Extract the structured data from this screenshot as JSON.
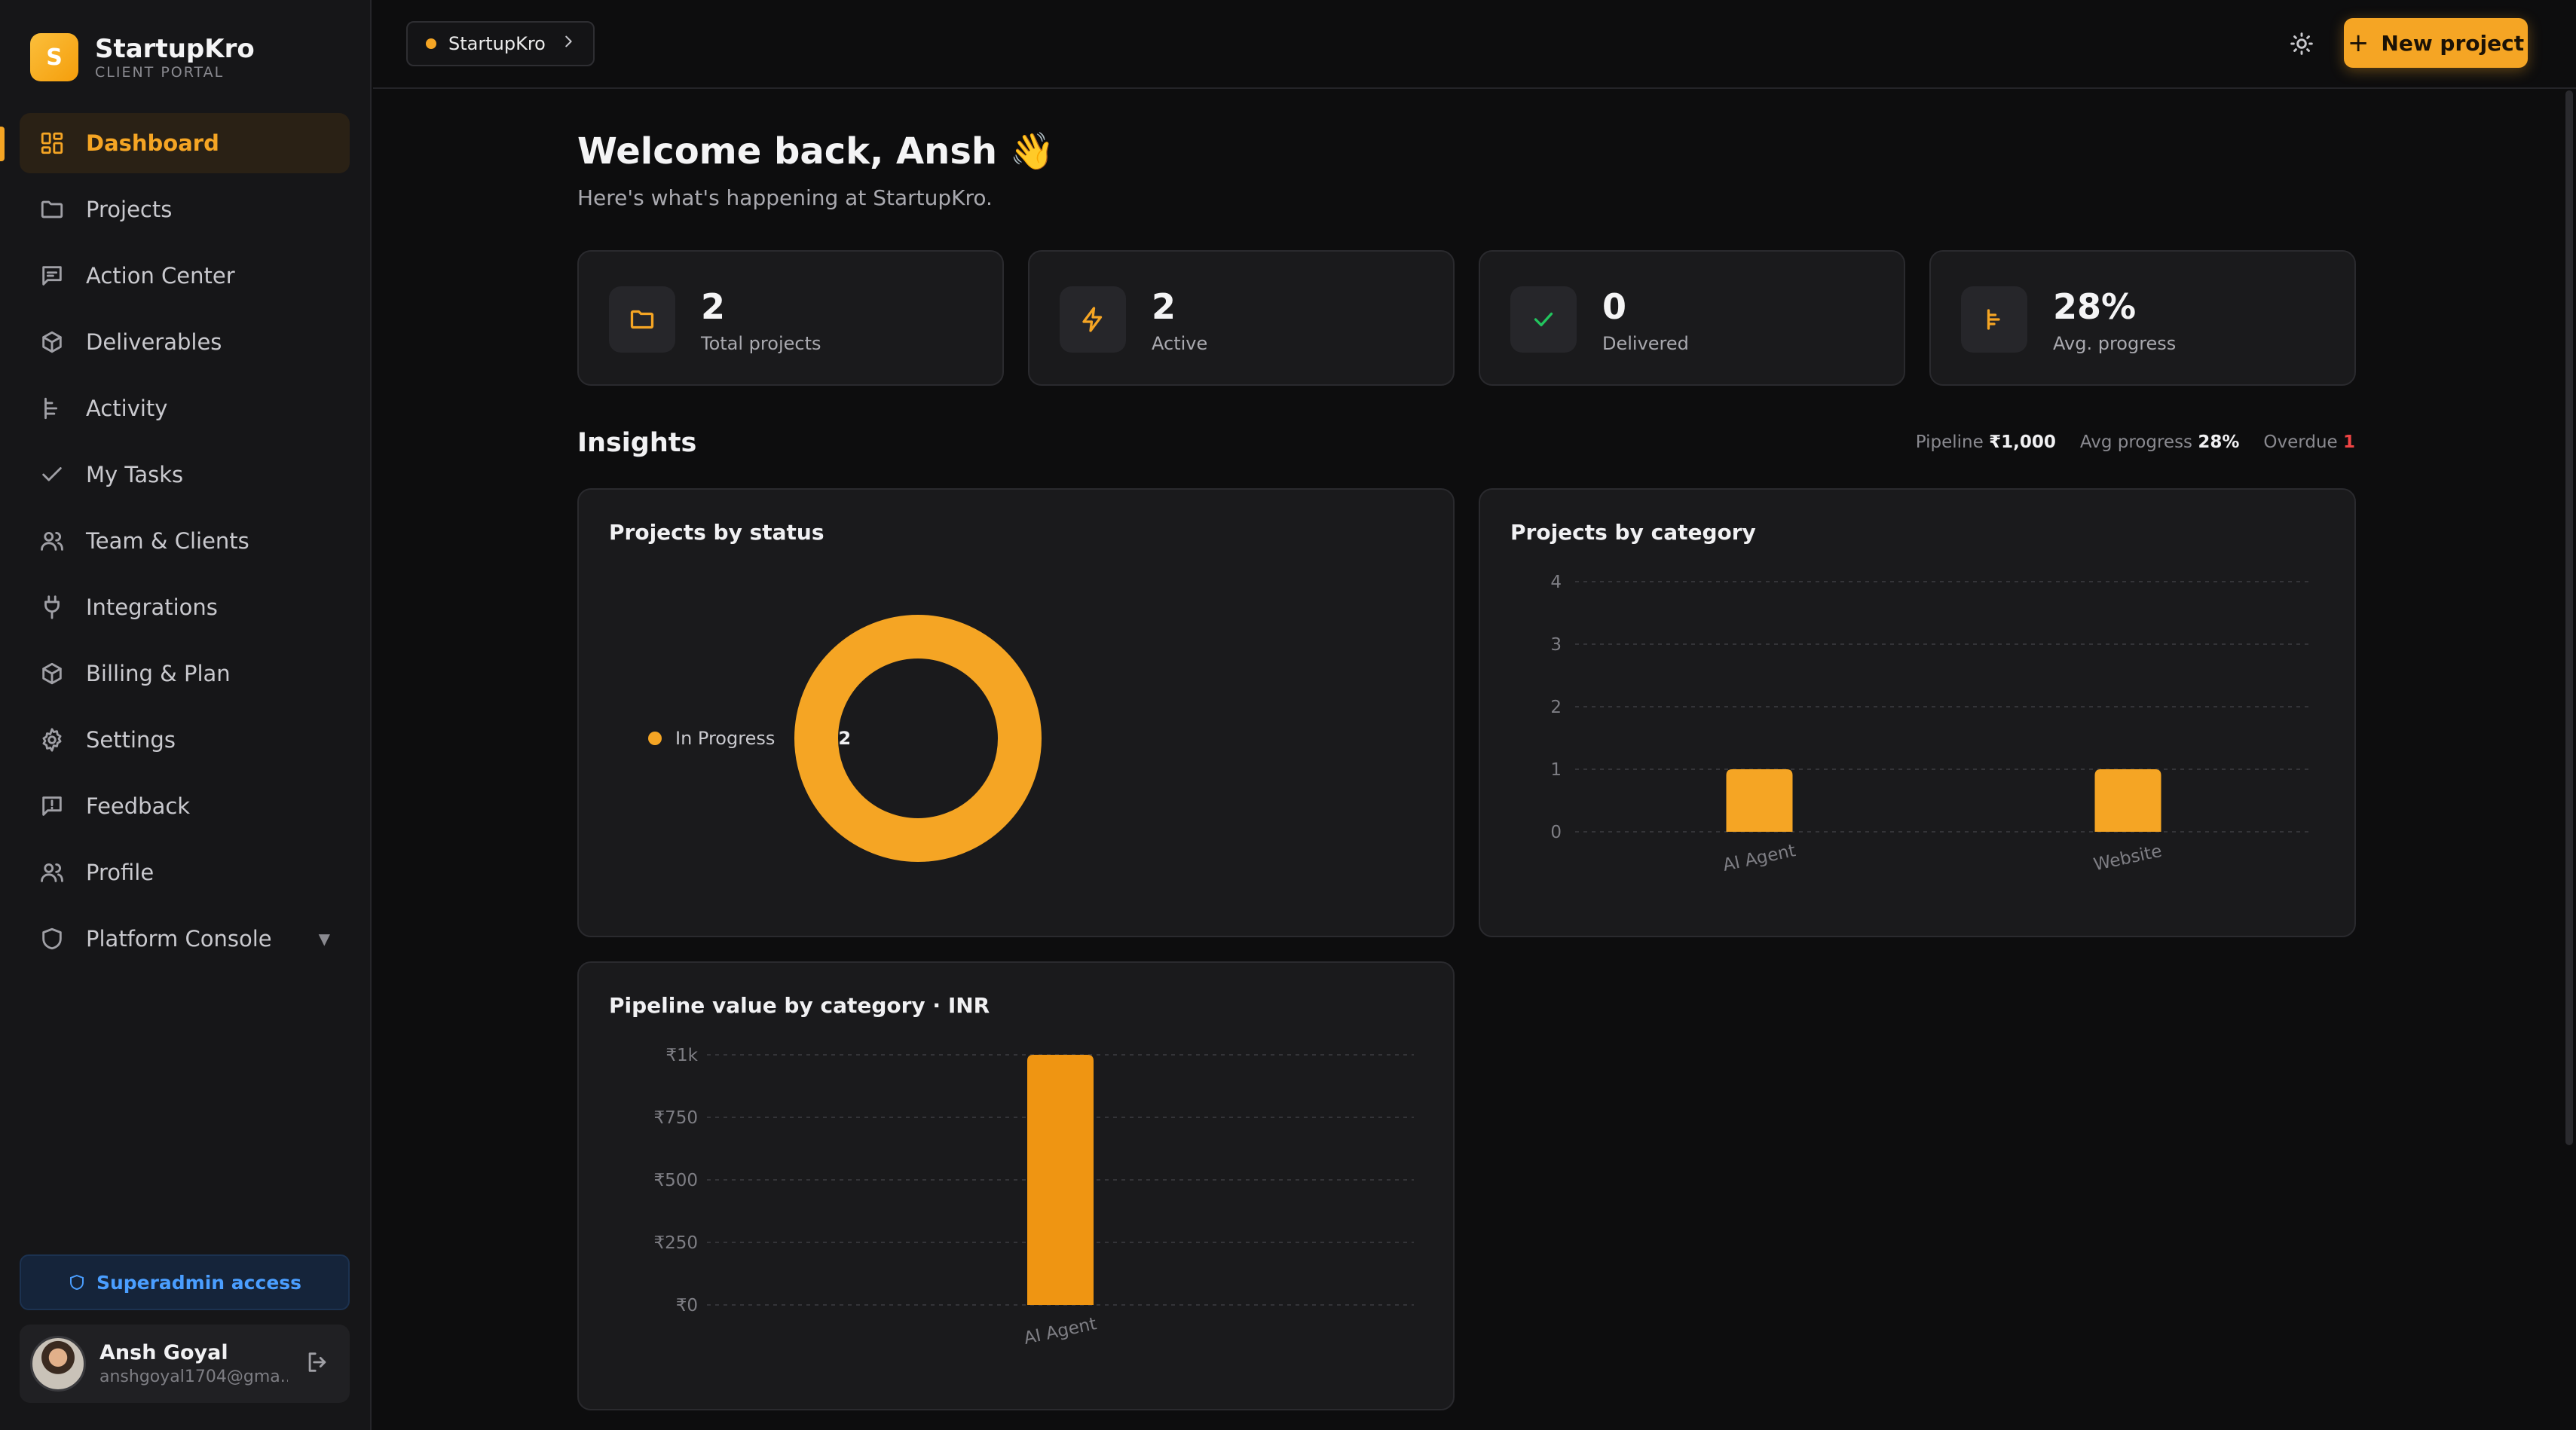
{
  "brand": {
    "logo_letter": "S",
    "name": "StartupKro",
    "subtitle": "CLIENT PORTAL"
  },
  "nav": {
    "items": [
      {
        "label": "Dashboard",
        "icon": "dashboard-grid-icon",
        "active": true
      },
      {
        "label": "Projects",
        "icon": "folder-icon"
      },
      {
        "label": "Action Center",
        "icon": "message-square-icon"
      },
      {
        "label": "Deliverables",
        "icon": "package-icon"
      },
      {
        "label": "Activity",
        "icon": "activity-tree-icon"
      },
      {
        "label": "My Tasks",
        "icon": "check-icon"
      },
      {
        "label": "Team & Clients",
        "icon": "users-icon"
      },
      {
        "label": "Integrations",
        "icon": "plug-icon"
      },
      {
        "label": "Billing & Plan",
        "icon": "package-icon"
      },
      {
        "label": "Settings",
        "icon": "gear-icon"
      },
      {
        "label": "Feedback",
        "icon": "message-alert-icon"
      },
      {
        "label": "Profile",
        "icon": "users-icon"
      }
    ],
    "platform_console": {
      "label": "Platform Console",
      "icon": "shield-icon",
      "caret": "▼"
    }
  },
  "superadmin": {
    "label": "Superadmin access",
    "color": "#4a9eff"
  },
  "user": {
    "name": "Ansh Goyal",
    "email": "anshgoyal1704@gma..."
  },
  "topbar": {
    "workspace": "StartupKro",
    "new_project_label": "New project",
    "accent": "#f5a524"
  },
  "welcome": {
    "title": "Welcome back, Ansh 👋",
    "subtitle": "Here's what's happening at StartupKro."
  },
  "stats": [
    {
      "value": "2",
      "label": "Total projects",
      "icon": "folder-icon",
      "color": "#f5a524"
    },
    {
      "value": "2",
      "label": "Active",
      "icon": "lightning-icon",
      "color": "#f5a524"
    },
    {
      "value": "0",
      "label": "Delivered",
      "icon": "check-icon",
      "color": "#22c55e"
    },
    {
      "value": "28%",
      "label": "Avg. progress",
      "icon": "progress-tree-icon",
      "color": "#f5a524"
    }
  ],
  "insights": {
    "title": "Insights",
    "pipeline_label": "Pipeline",
    "pipeline_value": "₹1,000",
    "avg_label": "Avg progress",
    "avg_value": "28%",
    "overdue_label": "Overdue",
    "overdue_value": "1"
  },
  "cards": {
    "status_title": "Projects by status",
    "category_title": "Projects by category",
    "pipeline_title": "Pipeline value by category · INR"
  },
  "chart_data": [
    {
      "type": "pie",
      "title": "Projects by status",
      "categories": [
        "In Progress"
      ],
      "values": [
        2
      ],
      "colors": [
        "#f5a524"
      ],
      "legend": "right"
    },
    {
      "type": "bar",
      "title": "Projects by category",
      "categories": [
        "AI Agent",
        "Website"
      ],
      "values": [
        1,
        1
      ],
      "ylim": [
        0,
        4
      ],
      "yticks": [
        "0",
        "1",
        "2",
        "3",
        "4"
      ],
      "grid": true,
      "color": "#f5a524"
    },
    {
      "type": "bar",
      "title": "Pipeline value by category · INR",
      "categories": [
        "AI Agent"
      ],
      "values": [
        1000
      ],
      "ylim": [
        0,
        1000
      ],
      "yticks": [
        "₹0",
        "₹250",
        "₹500",
        "₹750",
        "₹1k"
      ],
      "grid": true,
      "color": "#ef9512"
    }
  ]
}
